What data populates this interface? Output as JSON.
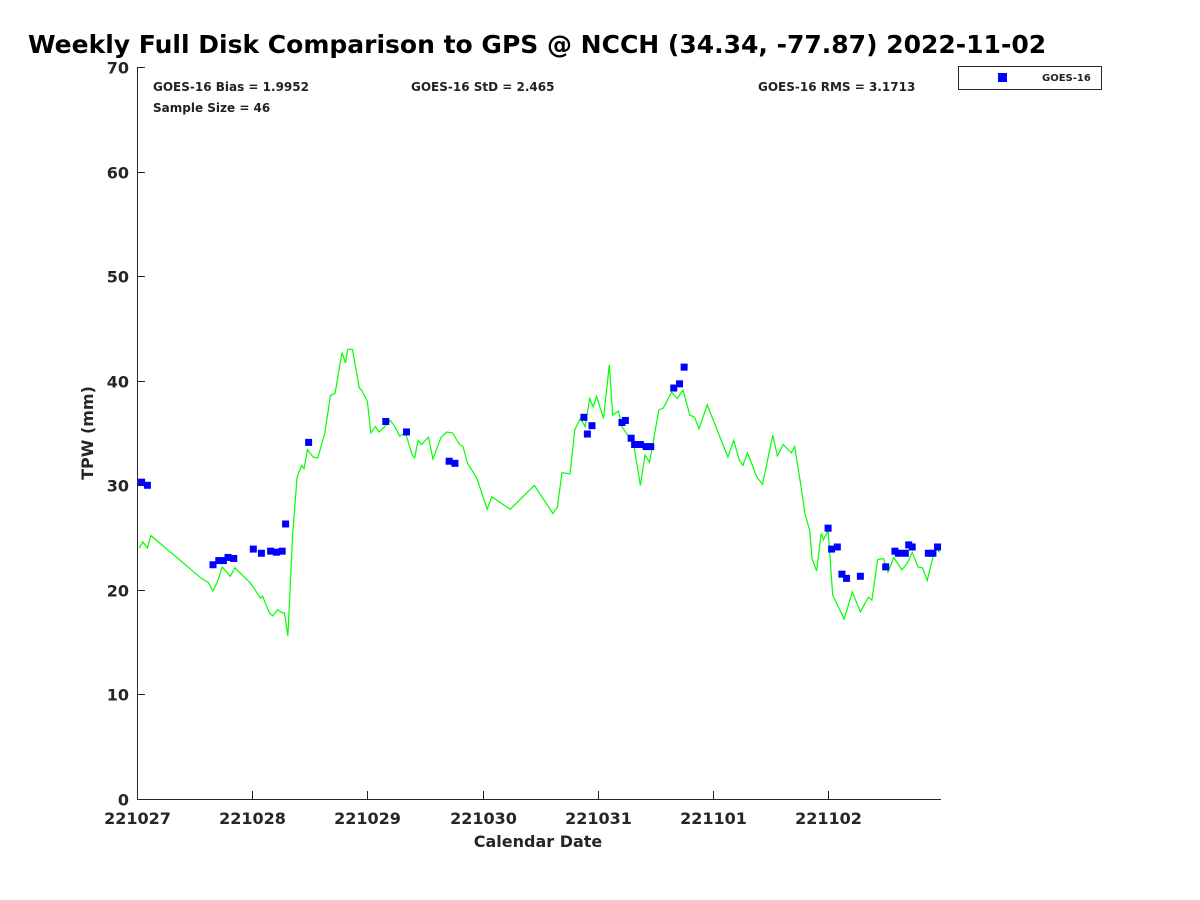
{
  "chart_data": {
    "type": "line+scatter",
    "title": "Weekly Full Disk Comparison to GPS @ NCCH (34.34, -77.87) 2022-11-02",
    "xlabel": "Calendar Date",
    "ylabel": "TPW (mm)",
    "xlim": [
      0,
      6.98
    ],
    "ylim": [
      0,
      70
    ],
    "x_units": "days since 221027",
    "xticks": [
      0,
      1,
      2,
      3,
      4,
      5,
      6
    ],
    "xtick_labels": [
      "221027",
      "221028",
      "221029",
      "221030",
      "221031",
      "221101",
      "221102"
    ],
    "yticks": [
      0,
      10,
      20,
      30,
      40,
      50,
      60,
      70
    ],
    "ytick_labels": [
      "0",
      "10",
      "20",
      "30",
      "40",
      "50",
      "60",
      "70"
    ],
    "grid": false,
    "legend": {
      "position": "top-right-outside",
      "entries": [
        "GOES-16"
      ]
    },
    "stats": {
      "bias": "GOES-16 Bias = 1.9952",
      "std": "GOES-16 StD = 2.465",
      "rms": "GOES-16 RMS = 3.1713",
      "sample": "Sample Size = 46"
    },
    "series": [
      {
        "name": "GPS",
        "kind": "line",
        "color": "#00ff00",
        "x": [
          0.02,
          0.05,
          0.09,
          0.12,
          0.56,
          0.62,
          0.66,
          0.7,
          0.74,
          0.81,
          0.85,
          0.98,
          1.02,
          1.07,
          1.09,
          1.13,
          1.15,
          1.18,
          1.22,
          1.26,
          1.28,
          1.31,
          1.35,
          1.39,
          1.43,
          1.45,
          1.48,
          1.53,
          1.57,
          1.63,
          1.68,
          1.72,
          1.78,
          1.81,
          1.83,
          1.87,
          1.93,
          1.95,
          2.0,
          2.03,
          2.07,
          2.1,
          2.14,
          2.2,
          2.24,
          2.28,
          2.33,
          2.39,
          2.41,
          2.44,
          2.47,
          2.53,
          2.57,
          2.64,
          2.69,
          2.74,
          2.8,
          2.83,
          2.87,
          2.95,
          3.04,
          3.08,
          3.24,
          3.45,
          3.61,
          3.65,
          3.69,
          3.76,
          3.8,
          3.85,
          3.89,
          3.93,
          3.96,
          3.99,
          4.05,
          4.1,
          4.13,
          4.18,
          4.21,
          4.31,
          4.37,
          4.41,
          4.45,
          4.53,
          4.57,
          4.64,
          4.69,
          4.74,
          4.8,
          4.84,
          4.88,
          4.95,
          5.13,
          5.18,
          5.23,
          5.26,
          5.3,
          5.35,
          5.38,
          5.43,
          5.52,
          5.56,
          5.61,
          5.68,
          5.71,
          5.76,
          5.8,
          5.84,
          5.86,
          5.9,
          5.94,
          5.96,
          6.0,
          6.04,
          6.14,
          6.21,
          6.28,
          6.35,
          6.38,
          6.43,
          6.48,
          6.52,
          6.57,
          6.64,
          6.69,
          6.73,
          6.78,
          6.82,
          6.86,
          6.93,
          6.97
        ],
        "y": [
          24.0,
          24.6,
          24.0,
          25.2,
          21.1,
          20.7,
          19.9,
          20.8,
          22.2,
          21.3,
          22.1,
          20.7,
          20.1,
          19.2,
          19.4,
          18.3,
          17.8,
          17.5,
          18.1,
          17.8,
          17.8,
          15.6,
          25.1,
          30.8,
          31.9,
          31.6,
          33.4,
          32.7,
          32.6,
          35.0,
          38.6,
          38.8,
          42.7,
          41.7,
          43.0,
          43.0,
          39.3,
          39.1,
          38.0,
          35.0,
          35.6,
          35.1,
          35.5,
          36.2,
          35.6,
          34.7,
          35.0,
          32.9,
          32.6,
          34.3,
          33.9,
          34.6,
          32.5,
          34.6,
          35.1,
          35.0,
          33.9,
          33.7,
          32.1,
          30.7,
          27.7,
          28.9,
          27.7,
          30.0,
          27.3,
          27.9,
          31.2,
          31.1,
          35.3,
          36.4,
          35.6,
          38.3,
          37.5,
          38.5,
          36.4,
          41.5,
          36.7,
          37.1,
          35.6,
          34.0,
          30.0,
          32.9,
          32.2,
          37.2,
          37.4,
          38.9,
          38.3,
          39.1,
          36.7,
          36.5,
          35.4,
          37.7,
          32.7,
          34.3,
          32.4,
          31.9,
          33.1,
          31.7,
          30.8,
          30.1,
          34.8,
          32.8,
          33.9,
          33.1,
          33.7,
          30.2,
          27.2,
          25.7,
          23.0,
          21.8,
          25.4,
          24.8,
          25.7,
          19.5,
          17.2,
          19.8,
          17.9,
          19.3,
          19.0,
          22.9,
          23.0,
          21.7,
          23.1,
          21.9,
          22.6,
          23.6,
          22.2,
          22.1,
          20.9,
          24.0,
          23.6
        ]
      },
      {
        "name": "GOES-16",
        "kind": "scatter",
        "color": "#0000ff",
        "x": [
          0.04,
          0.09,
          0.66,
          0.71,
          0.75,
          0.79,
          0.84,
          1.01,
          1.08,
          1.16,
          1.21,
          1.26,
          1.29,
          1.49,
          2.16,
          2.34,
          2.71,
          2.76,
          3.88,
          3.91,
          3.95,
          4.21,
          4.24,
          4.29,
          4.32,
          4.37,
          4.42,
          4.46,
          4.66,
          4.71,
          4.75,
          6.0,
          6.03,
          6.08,
          6.12,
          6.16,
          6.28,
          6.5,
          6.58,
          6.61,
          6.67,
          6.7,
          6.73,
          6.87,
          6.91,
          6.95
        ],
        "y": [
          30.3,
          30.0,
          22.4,
          22.8,
          22.8,
          23.1,
          23.0,
          23.9,
          23.5,
          23.7,
          23.6,
          23.7,
          26.3,
          34.1,
          36.1,
          35.1,
          32.3,
          32.1,
          36.5,
          34.9,
          35.7,
          36.0,
          36.2,
          34.5,
          33.9,
          33.9,
          33.7,
          33.7,
          39.3,
          39.7,
          41.3,
          25.9,
          23.9,
          24.1,
          21.5,
          21.1,
          21.3,
          22.2,
          23.7,
          23.5,
          23.5,
          24.3,
          24.1,
          23.5,
          23.5,
          24.1
        ]
      }
    ]
  }
}
